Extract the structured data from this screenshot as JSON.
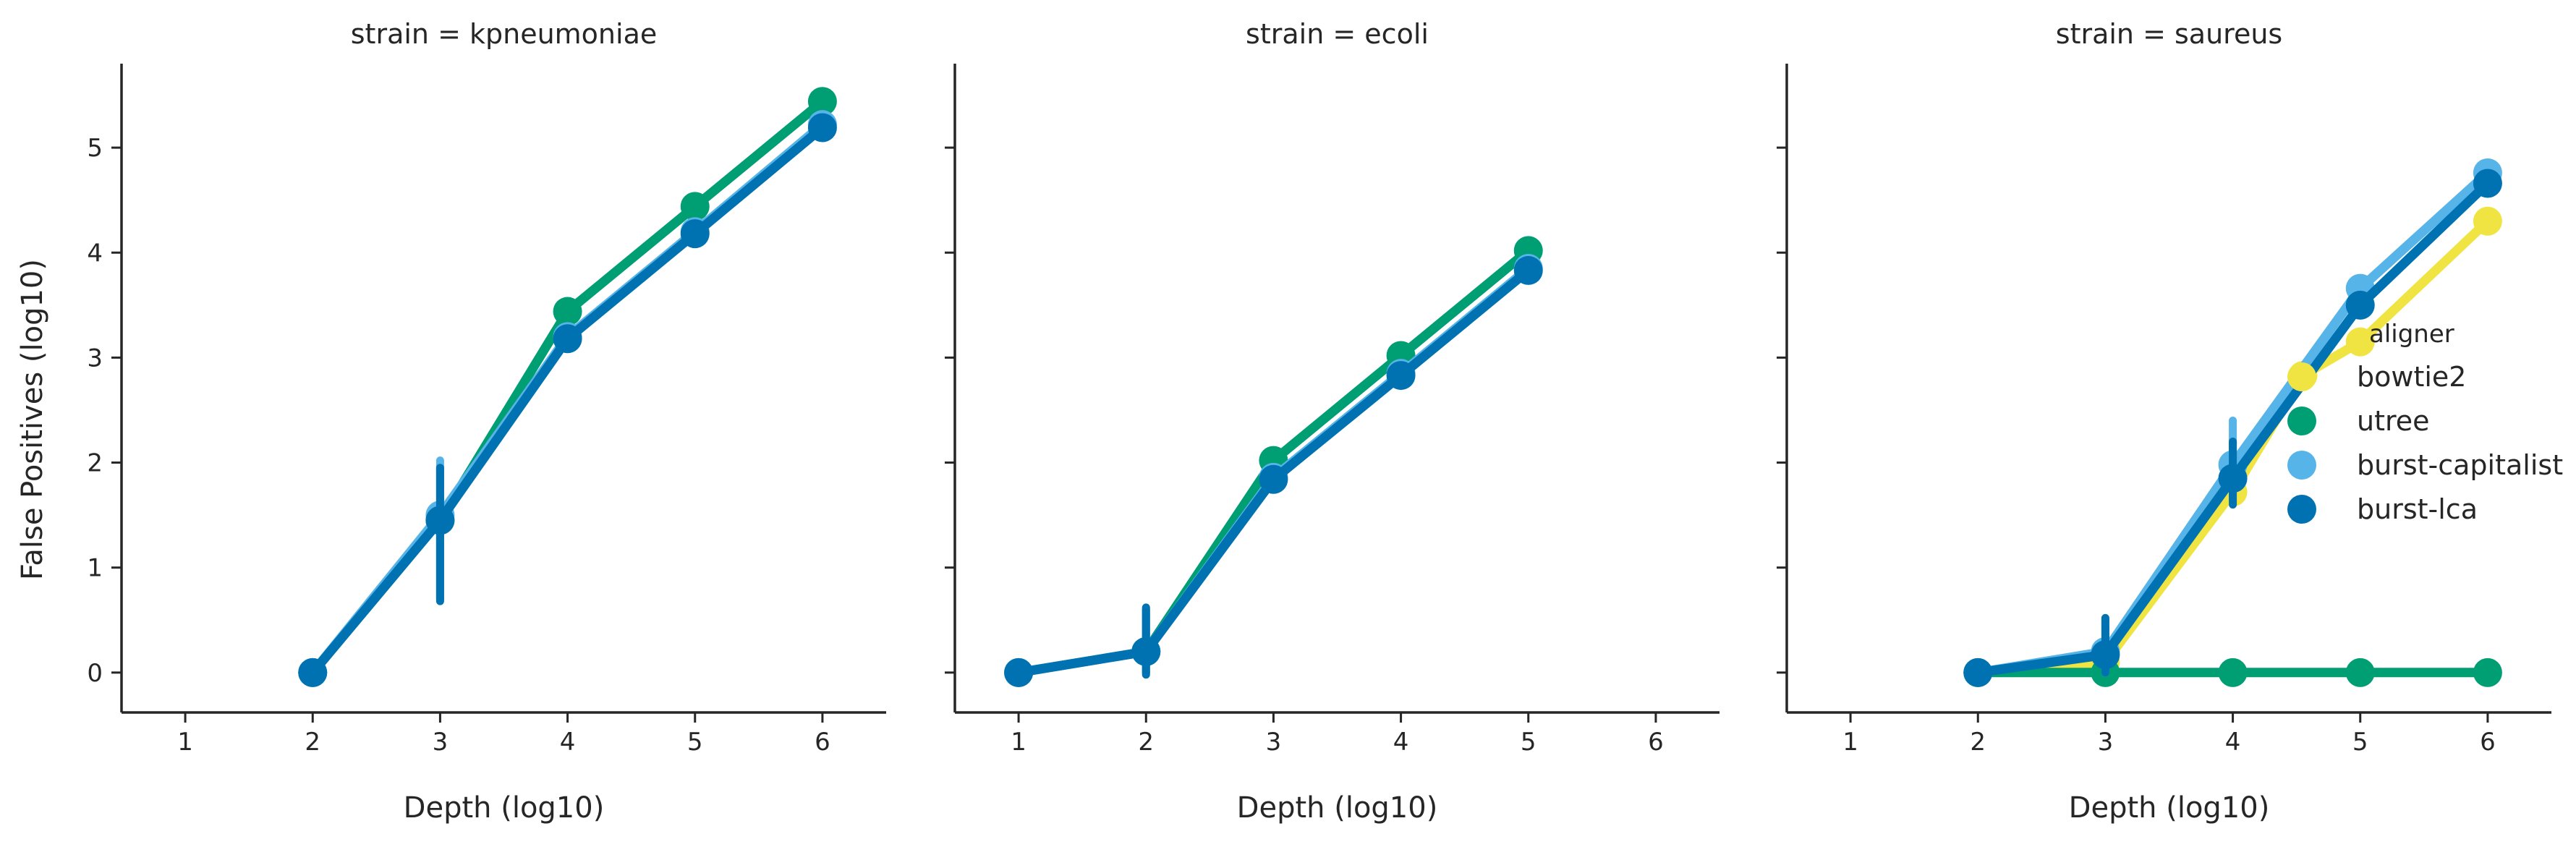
{
  "chart_data": {
    "type": "line",
    "xlabel": "Depth (log10)",
    "ylabel": "False Positives (log10)",
    "xlim": [
      0.5,
      6.5
    ],
    "ylim": [
      -0.38,
      5.8
    ],
    "xticks": [
      1,
      2,
      3,
      4,
      5,
      6
    ],
    "yticks": [
      0,
      1,
      2,
      3,
      4,
      5
    ],
    "legend": {
      "title": "aligner",
      "position": "right",
      "entries": [
        "bowtie2",
        "utree",
        "burst-capitalist",
        "burst-lca"
      ]
    },
    "colors": {
      "bowtie2": "#f0e442",
      "utree": "#009e73",
      "burst-capitalist": "#56b4e9",
      "burst-lca": "#0072b2"
    },
    "facets": [
      {
        "title": "strain = kpneumoniae",
        "series": [
          {
            "name": "utree",
            "x": [
              2,
              3,
              4,
              5,
              6
            ],
            "y": [
              0,
              1.45,
              3.44,
              4.44,
              5.44
            ],
            "err": [
              null,
              [
                0.7,
                1.95
              ],
              null,
              null,
              null
            ]
          },
          {
            "name": "burst-capitalist",
            "x": [
              2,
              3,
              4,
              5,
              6
            ],
            "y": [
              0,
              1.5,
              3.2,
              4.2,
              5.22
            ],
            "err": [
              null,
              [
                0.7,
                2.02
              ],
              null,
              null,
              null
            ]
          },
          {
            "name": "burst-lca",
            "x": [
              2,
              3,
              4,
              5,
              6
            ],
            "y": [
              0,
              1.45,
              3.18,
              4.18,
              5.19
            ],
            "err": [
              null,
              [
                0.68,
                1.95
              ],
              null,
              null,
              null
            ]
          }
        ]
      },
      {
        "title": "strain = ecoli",
        "series": [
          {
            "name": "utree",
            "x": [
              1,
              2,
              3,
              4,
              5
            ],
            "y": [
              0,
              0.2,
              2.02,
              3.02,
              4.02
            ],
            "err": [
              null,
              [
                0,
                0.6
              ],
              null,
              null,
              null
            ]
          },
          {
            "name": "burst-capitalist",
            "x": [
              1,
              2,
              3,
              4,
              5
            ],
            "y": [
              0,
              0.2,
              1.86,
              2.85,
              3.85
            ],
            "err": [
              null,
              [
                0,
                0.6
              ],
              null,
              null,
              null
            ]
          },
          {
            "name": "burst-lca",
            "x": [
              1,
              2,
              3,
              4,
              5
            ],
            "y": [
              0,
              0.2,
              1.84,
              2.83,
              3.83
            ],
            "err": [
              null,
              [
                -0.02,
                0.62
              ],
              null,
              null,
              null
            ]
          }
        ]
      },
      {
        "title": "strain = saureus",
        "series": [
          {
            "name": "bowtie2",
            "x": [
              2,
              3,
              4,
              4.55,
              5,
              6
            ],
            "y": [
              0,
              0.1,
              1.72,
              2.83,
              3.15,
              4.3
            ],
            "err": [
              null,
              null,
              null,
              null,
              null,
              null
            ]
          },
          {
            "name": "utree",
            "x": [
              2,
              3,
              4,
              5,
              6
            ],
            "y": [
              0,
              0,
              0,
              0,
              0
            ],
            "err": [
              null,
              null,
              null,
              null,
              null
            ]
          },
          {
            "name": "burst-capitalist",
            "x": [
              2,
              3,
              4,
              5,
              6
            ],
            "y": [
              0,
              0.2,
              1.98,
              3.66,
              4.76
            ],
            "err": [
              null,
              [
                0,
                0.5
              ],
              [
                1.65,
                2.4
              ],
              null,
              null
            ]
          },
          {
            "name": "burst-lca",
            "x": [
              2,
              3,
              4,
              5,
              6
            ],
            "y": [
              0,
              0.17,
              1.85,
              3.5,
              4.66
            ],
            "err": [
              null,
              [
                0,
                0.52
              ],
              [
                1.6,
                2.2
              ],
              null,
              null
            ]
          }
        ]
      }
    ]
  }
}
